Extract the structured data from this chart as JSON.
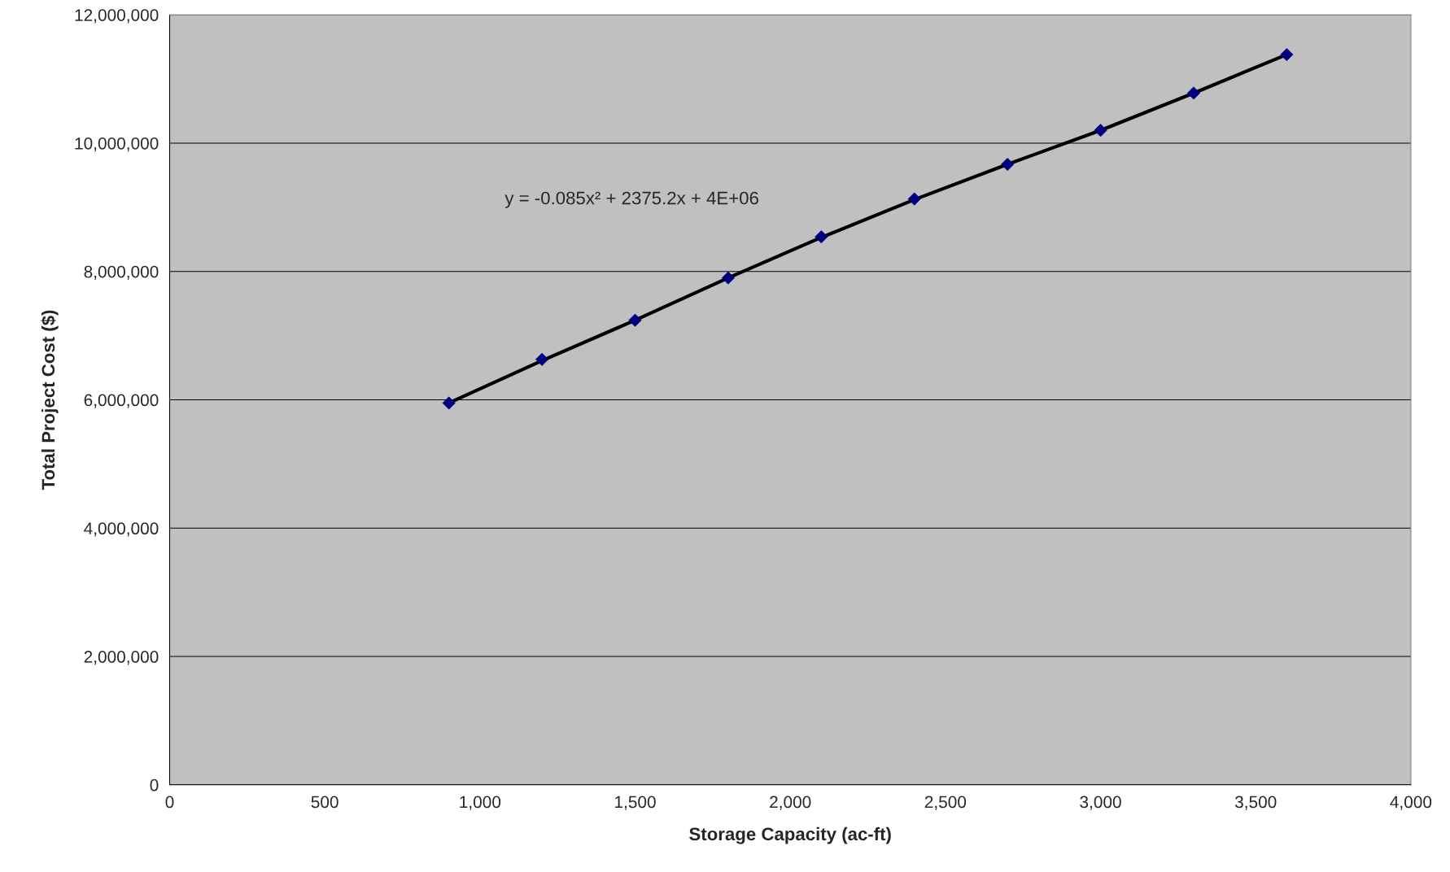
{
  "chart_data": {
    "type": "scatter",
    "xlabel": "Storage Capacity (ac-ft)",
    "ylabel": "Total Project Cost ($)",
    "x": [
      900,
      1200,
      1500,
      1800,
      2100,
      2400,
      2700,
      3000,
      3300,
      3600
    ],
    "series": [
      {
        "type": "line",
        "color": "#000000",
        "marker": "none",
        "line_style": "solid",
        "x": [
          900,
          1200,
          1500,
          1800,
          2100,
          2400,
          2700,
          3000,
          3300,
          3600
        ],
        "values": [
          5950000,
          6610000,
          7240000,
          7900000,
          8530000,
          9120000,
          9670000,
          10200000,
          10780000,
          11380000
        ]
      },
      {
        "color": "#000080",
        "marker": "diamond",
        "values": [
          5950000,
          6630000,
          7240000,
          7900000,
          8540000,
          9130000,
          9670000,
          10200000,
          10780000,
          11380000
        ]
      }
    ],
    "annotations": [
      "y = -0.085x² + 2375.2x + 4E+06"
    ],
    "xlim": [
      0,
      4000
    ],
    "ylim": [
      0,
      12000000
    ],
    "xticks": [
      0,
      {
        "value": 500,
        "label": "500"
      },
      {
        "value": 1000,
        "label": "1,000"
      },
      {
        "value": 1500,
        "label": "1,500"
      },
      {
        "value": 2000,
        "label": "2,000"
      },
      {
        "value": 2500,
        "label": "2,500"
      },
      {
        "value": 3000,
        "label": "3,000"
      },
      {
        "value": 3500,
        "label": "3,500"
      },
      {
        "value": 4000,
        "label": "4,000"
      }
    ],
    "yticks": [
      0,
      {
        "value": 2000000,
        "label": "2,000,000"
      },
      {
        "value": 4000000,
        "label": "4,000,000"
      },
      {
        "value": 6000000,
        "label": "6,000,000"
      },
      {
        "value": 8000000,
        "label": "8,000,000"
      },
      {
        "value": 10000000,
        "label": "10,000,000"
      },
      {
        "value": 12000000,
        "label": "12,000,000"
      }
    ],
    "grid": "y",
    "legend": false
  }
}
